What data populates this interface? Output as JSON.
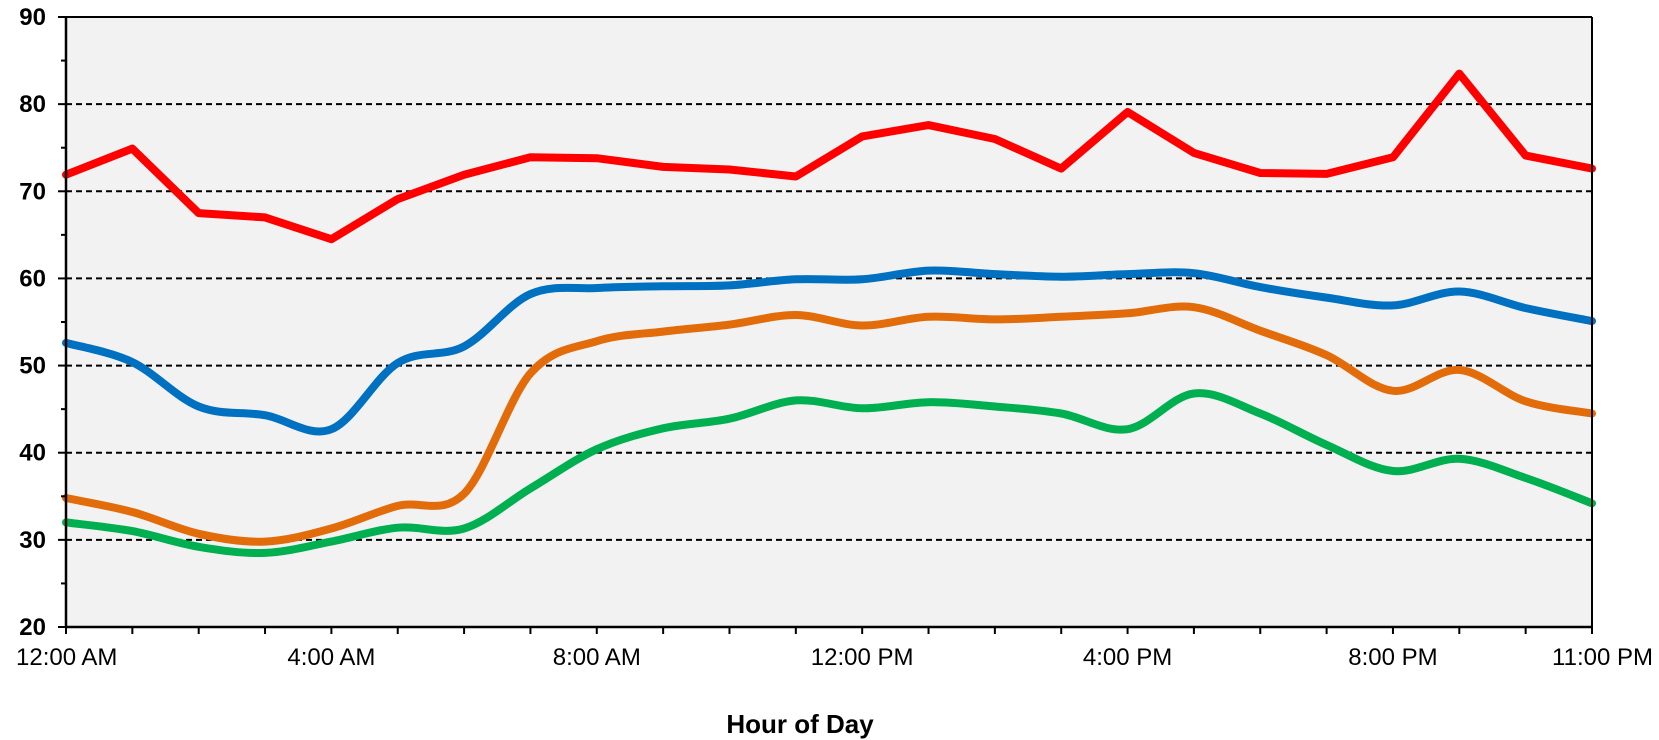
{
  "chart_data": {
    "type": "line",
    "title": "",
    "xlabel": "Hour of Day",
    "ylabel": "",
    "ylim": [
      20,
      90
    ],
    "y_ticks": [
      20,
      30,
      40,
      50,
      60,
      70,
      80,
      90
    ],
    "xlim": [
      0,
      23
    ],
    "x": [
      0,
      1,
      2,
      3,
      4,
      5,
      6,
      7,
      8,
      9,
      10,
      11,
      12,
      13,
      14,
      15,
      16,
      17,
      18,
      19,
      20,
      21,
      22,
      23
    ],
    "x_tick_positions": [
      0,
      4,
      8,
      12,
      16,
      20,
      23
    ],
    "x_tick_labels": [
      "12:00 AM",
      "4:00 AM",
      "8:00 AM",
      "12:00 PM",
      "4:00 PM",
      "8:00 PM",
      "11:00 PM"
    ],
    "grid": "horizontal dashed",
    "plot_background": "#f2f2f2",
    "series": [
      {
        "color": "#ff0000",
        "smooth": false,
        "values": [
          71.9,
          74.9,
          67.5,
          67.0,
          64.5,
          69.1,
          71.9,
          73.9,
          73.8,
          72.8,
          72.5,
          71.7,
          76.3,
          77.6,
          76.0,
          72.6,
          79.1,
          74.4,
          72.1,
          72.0,
          73.9,
          83.5,
          74.1,
          72.6
        ]
      },
      {
        "color": "#0070c0",
        "smooth": true,
        "values": [
          52.6,
          50.4,
          45.3,
          44.3,
          42.7,
          50.3,
          52.2,
          58.2,
          58.9,
          59.1,
          59.2,
          59.9,
          59.9,
          60.9,
          60.5,
          60.2,
          60.5,
          60.6,
          59.0,
          57.8,
          56.9,
          58.5,
          56.6,
          55.1
        ]
      },
      {
        "color": "#e36c0a",
        "smooth": true,
        "values": [
          34.8,
          33.2,
          30.7,
          29.8,
          31.3,
          33.9,
          35.3,
          49.1,
          52.8,
          53.9,
          54.7,
          55.8,
          54.6,
          55.6,
          55.3,
          55.6,
          56.0,
          56.7,
          54.0,
          51.2,
          47.1,
          49.5,
          45.9,
          44.5
        ]
      },
      {
        "color": "#00b050",
        "smooth": true,
        "values": [
          32.0,
          31.0,
          29.2,
          28.5,
          29.8,
          31.4,
          31.3,
          35.9,
          40.4,
          42.8,
          43.9,
          46.0,
          45.1,
          45.8,
          45.3,
          44.5,
          42.7,
          46.8,
          44.5,
          40.9,
          37.9,
          39.3,
          37.1,
          34.2
        ]
      }
    ]
  }
}
